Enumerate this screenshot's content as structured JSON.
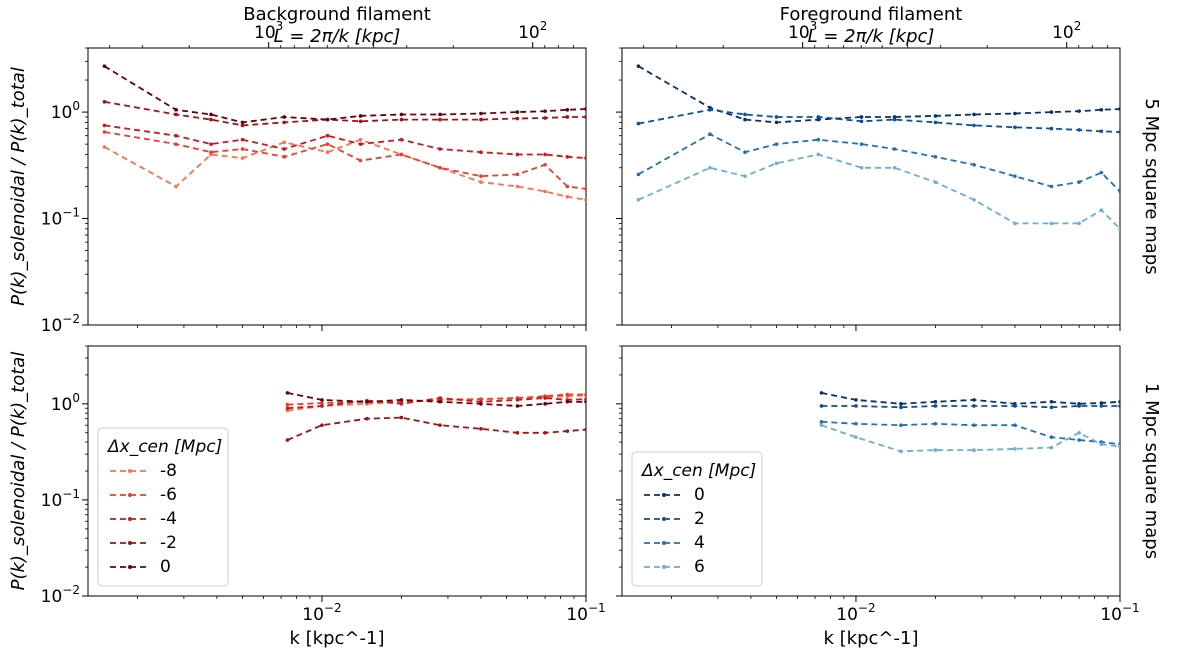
{
  "chart_data": [
    {
      "type": "line",
      "panel": "top-left",
      "title": "Background filament",
      "top_axis_label": "L = 2π/k [kpc]",
      "top_ticks": [
        "10^3",
        "10^2"
      ],
      "ylabel": "P(k)_solenoidal / P(k)_total",
      "row_label": "",
      "xscale": "log",
      "yscale": "log",
      "xlim": [
        0.0013,
        0.1
      ],
      "ylim": [
        0.01,
        4
      ],
      "series": [
        {
          "name": "-8",
          "color": "#fc7050",
          "x": [
            0.0015,
            0.0028,
            0.0038,
            0.005,
            0.0072,
            0.0105,
            0.014,
            0.02,
            0.028,
            0.04,
            0.055,
            0.07,
            0.085,
            0.1
          ],
          "y": [
            0.47,
            0.2,
            0.4,
            0.37,
            0.52,
            0.42,
            0.55,
            0.4,
            0.3,
            0.22,
            0.2,
            0.18,
            0.16,
            0.15
          ]
        },
        {
          "name": "-6",
          "color": "#ef3b2c",
          "x": [
            0.0015,
            0.0028,
            0.0038,
            0.005,
            0.0072,
            0.0105,
            0.014,
            0.02,
            0.028,
            0.04,
            0.055,
            0.07,
            0.085,
            0.1
          ],
          "y": [
            0.65,
            0.5,
            0.42,
            0.45,
            0.38,
            0.5,
            0.35,
            0.4,
            0.3,
            0.25,
            0.26,
            0.32,
            0.2,
            0.19
          ]
        },
        {
          "name": "-4",
          "color": "#cb181d",
          "x": [
            0.0015,
            0.0028,
            0.0038,
            0.005,
            0.0072,
            0.0105,
            0.014,
            0.02,
            0.028,
            0.04,
            0.055,
            0.07,
            0.085,
            0.1
          ],
          "y": [
            0.75,
            0.6,
            0.5,
            0.55,
            0.45,
            0.6,
            0.5,
            0.55,
            0.45,
            0.42,
            0.4,
            0.4,
            0.38,
            0.37
          ]
        },
        {
          "name": "-2",
          "color": "#a50f15",
          "x": [
            0.0015,
            0.0028,
            0.0038,
            0.005,
            0.0072,
            0.0105,
            0.014,
            0.02,
            0.028,
            0.04,
            0.055,
            0.07,
            0.085,
            0.1
          ],
          "y": [
            1.25,
            0.95,
            0.85,
            0.75,
            0.8,
            0.85,
            0.82,
            0.85,
            0.85,
            0.85,
            0.87,
            0.88,
            0.9,
            0.9
          ]
        },
        {
          "name": "0",
          "color": "#67000d",
          "x": [
            0.0015,
            0.0028,
            0.0038,
            0.005,
            0.0072,
            0.0105,
            0.014,
            0.02,
            0.028,
            0.04,
            0.055,
            0.07,
            0.085,
            0.1
          ],
          "y": [
            2.7,
            1.05,
            0.95,
            0.8,
            0.9,
            0.85,
            0.92,
            0.95,
            0.95,
            0.97,
            1.0,
            1.02,
            1.05,
            1.07
          ]
        }
      ]
    },
    {
      "type": "line",
      "panel": "top-right",
      "title": "Foreground filament",
      "top_axis_label": "L = 2π/k [kpc]",
      "top_ticks": [
        "10^3",
        "10^2"
      ],
      "ylabel": "",
      "row_label": "5 Mpc square maps",
      "xscale": "log",
      "yscale": "log",
      "xlim": [
        0.0013,
        0.1
      ],
      "ylim": [
        0.01,
        4
      ],
      "series": [
        {
          "name": "0",
          "color": "#08306b",
          "x": [
            0.0015,
            0.0028,
            0.0038,
            0.005,
            0.0072,
            0.0105,
            0.014,
            0.02,
            0.028,
            0.04,
            0.055,
            0.07,
            0.085,
            0.1
          ],
          "y": [
            2.7,
            1.1,
            0.85,
            0.8,
            0.85,
            0.9,
            0.9,
            0.92,
            0.95,
            0.97,
            1.0,
            1.02,
            1.05,
            1.07
          ]
        },
        {
          "name": "2",
          "color": "#08519c",
          "x": [
            0.0015,
            0.0028,
            0.0038,
            0.005,
            0.0072,
            0.0105,
            0.014,
            0.02,
            0.028,
            0.04,
            0.055,
            0.07,
            0.085,
            0.1
          ],
          "y": [
            0.78,
            1.05,
            0.95,
            0.9,
            0.9,
            0.82,
            0.85,
            0.8,
            0.75,
            0.72,
            0.7,
            0.68,
            0.66,
            0.65
          ]
        },
        {
          "name": "4",
          "color": "#2171b5",
          "x": [
            0.0015,
            0.0028,
            0.0038,
            0.005,
            0.0072,
            0.0105,
            0.014,
            0.02,
            0.028,
            0.04,
            0.055,
            0.07,
            0.085,
            0.1
          ],
          "y": [
            0.26,
            0.62,
            0.42,
            0.5,
            0.55,
            0.5,
            0.45,
            0.38,
            0.32,
            0.25,
            0.2,
            0.22,
            0.27,
            0.18
          ]
        },
        {
          "name": "6",
          "color": "#6baed6",
          "x": [
            0.0015,
            0.0028,
            0.0038,
            0.005,
            0.0072,
            0.0105,
            0.014,
            0.02,
            0.028,
            0.04,
            0.055,
            0.07,
            0.085,
            0.1
          ],
          "y": [
            0.15,
            0.3,
            0.25,
            0.33,
            0.4,
            0.3,
            0.3,
            0.22,
            0.15,
            0.09,
            0.09,
            0.09,
            0.12,
            0.08
          ]
        }
      ]
    },
    {
      "type": "line",
      "panel": "bottom-left",
      "title": "",
      "xlabel": "k [kpc^-1]",
      "ylabel": "P(k)_solenoidal / P(k)_total",
      "row_label": "",
      "bottom_ticks": [
        "10^-2",
        "10^-1"
      ],
      "xscale": "log",
      "yscale": "log",
      "xlim": [
        0.0013,
        0.1
      ],
      "ylim": [
        0.01,
        4
      ],
      "legend": {
        "title": "Δx_cen [Mpc]",
        "location": "lower-left"
      },
      "series": [
        {
          "name": "-8",
          "color": "#fc7050",
          "x": [
            0.0074,
            0.01,
            0.0148,
            0.02,
            0.028,
            0.04,
            0.055,
            0.07,
            0.085,
            0.1
          ],
          "y": [
            0.85,
            0.95,
            1.0,
            1.05,
            1.1,
            1.12,
            1.15,
            1.18,
            1.2,
            1.22
          ]
        },
        {
          "name": "-6",
          "color": "#ef3b2c",
          "x": [
            0.0074,
            0.01,
            0.0148,
            0.02,
            0.028,
            0.04,
            0.055,
            0.07,
            0.085,
            0.1
          ],
          "y": [
            0.98,
            1.02,
            1.05,
            1.05,
            1.1,
            1.12,
            1.15,
            1.2,
            1.25,
            1.25
          ]
        },
        {
          "name": "-4",
          "color": "#cb181d",
          "x": [
            0.0074,
            0.01,
            0.0148,
            0.02,
            0.028,
            0.04,
            0.055,
            0.07,
            0.085,
            0.1
          ],
          "y": [
            0.9,
            0.95,
            1.08,
            1.0,
            1.15,
            1.05,
            1.1,
            1.15,
            1.1,
            1.12
          ]
        },
        {
          "name": "-2",
          "color": "#a50f15",
          "x": [
            0.0074,
            0.01,
            0.0148,
            0.02,
            0.028,
            0.04,
            0.055,
            0.07,
            0.085,
            0.1
          ],
          "y": [
            0.42,
            0.6,
            0.7,
            0.72,
            0.6,
            0.55,
            0.5,
            0.5,
            0.52,
            0.54
          ]
        },
        {
          "name": "0",
          "color": "#67000d",
          "x": [
            0.0074,
            0.01,
            0.0148,
            0.02,
            0.028,
            0.04,
            0.055,
            0.07,
            0.085,
            0.1
          ],
          "y": [
            1.3,
            1.1,
            1.05,
            1.1,
            1.05,
            1.0,
            0.95,
            1.0,
            1.05,
            1.05
          ]
        }
      ]
    },
    {
      "type": "line",
      "panel": "bottom-right",
      "title": "",
      "xlabel": "k [kpc^-1]",
      "ylabel": "",
      "row_label": "1 Mpc square maps",
      "bottom_ticks": [
        "10^-2",
        "10^-1"
      ],
      "xscale": "log",
      "yscale": "log",
      "xlim": [
        0.0013,
        0.1
      ],
      "ylim": [
        0.01,
        4
      ],
      "legend": {
        "title": "Δx_cen [Mpc]",
        "location": "lower-left"
      },
      "series": [
        {
          "name": "0",
          "color": "#08306b",
          "x": [
            0.0074,
            0.01,
            0.0148,
            0.02,
            0.028,
            0.04,
            0.055,
            0.07,
            0.085,
            0.1
          ],
          "y": [
            1.3,
            1.1,
            1.0,
            1.05,
            1.1,
            1.0,
            1.05,
            1.0,
            1.02,
            1.05
          ]
        },
        {
          "name": "2",
          "color": "#08519c",
          "x": [
            0.0074,
            0.01,
            0.0148,
            0.02,
            0.028,
            0.04,
            0.055,
            0.07,
            0.085,
            0.1
          ],
          "y": [
            0.95,
            0.95,
            0.92,
            0.95,
            0.95,
            0.95,
            0.92,
            0.95,
            0.95,
            0.95
          ]
        },
        {
          "name": "4",
          "color": "#2171b5",
          "x": [
            0.0074,
            0.01,
            0.0148,
            0.02,
            0.028,
            0.04,
            0.055,
            0.07,
            0.085,
            0.1
          ],
          "y": [
            0.65,
            0.62,
            0.6,
            0.62,
            0.6,
            0.6,
            0.45,
            0.42,
            0.4,
            0.38
          ]
        },
        {
          "name": "6",
          "color": "#6baed6",
          "x": [
            0.0074,
            0.01,
            0.0148,
            0.02,
            0.028,
            0.04,
            0.055,
            0.07,
            0.085,
            0.1
          ],
          "y": [
            0.6,
            0.45,
            0.32,
            0.33,
            0.33,
            0.34,
            0.35,
            0.5,
            0.38,
            0.36
          ]
        }
      ]
    }
  ]
}
